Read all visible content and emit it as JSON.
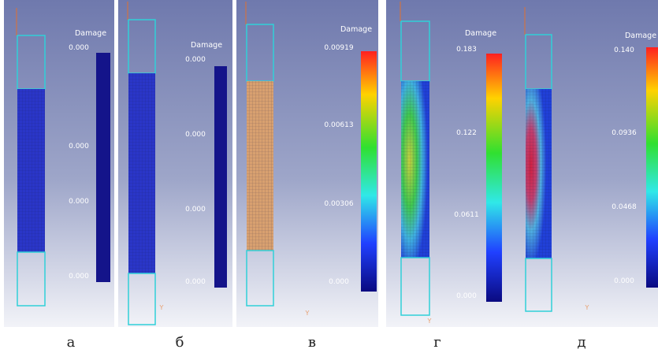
{
  "panels": [
    {
      "label": "а",
      "legend_title": "Damage",
      "ticks": [
        "0.000",
        "0.000",
        "0.000",
        "0.000"
      ]
    },
    {
      "label": "б",
      "legend_title": "Damage",
      "ticks": [
        "0.000",
        "0.000",
        "0.000",
        "0.000"
      ],
      "axis_label": "Y"
    },
    {
      "label": "в",
      "legend_title": "Damage",
      "ticks": [
        "0.00919",
        "0.00613",
        "0.00306",
        "0.000"
      ],
      "axis_label": "Y"
    },
    {
      "label": "г",
      "legend_title": "Damage",
      "ticks": [
        "0.183",
        "0.122",
        "0.0611",
        "0.000"
      ],
      "axis_label": "Y"
    },
    {
      "label": "д",
      "legend_title": "Damage",
      "ticks": [
        "0.140",
        "0.0936",
        "0.0468",
        "0.000"
      ],
      "axis_label": "Y"
    }
  ]
}
